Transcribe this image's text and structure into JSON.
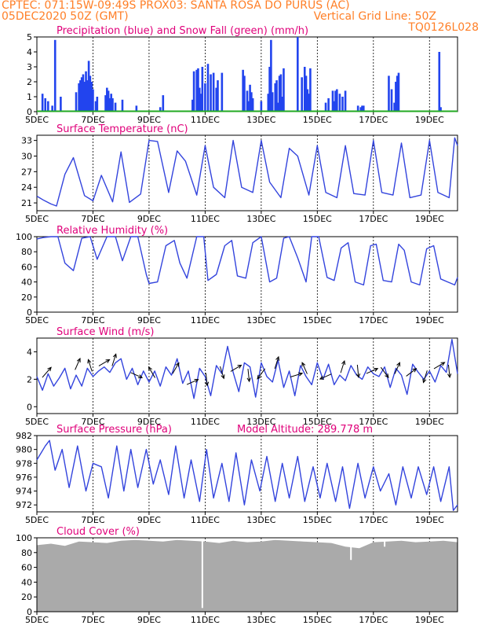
{
  "header": {
    "line1": "CPTEC:   071:15W-09:49S   PROX03: SANTA ROSA DO PURUS (AC)",
    "line2": "05DEC2020 50Z (GMT)",
    "grid_note": "Vertical Grid Line: 50Z",
    "code": "TQ0126L028"
  },
  "colors": {
    "header": "#ff7f27",
    "title": "#e0007a",
    "line": "#3344dd",
    "precip_bar": "#2244ee",
    "snow": "#22aa22",
    "cloud": "#aaaaaa",
    "arrow": "#000000"
  },
  "x_axis": {
    "start_day": 5,
    "end_day": 20,
    "ticks": [
      {
        "day": 5,
        "label": "5DEC"
      },
      {
        "day": 7,
        "label": "7DEC"
      },
      {
        "day": 9,
        "label": "9DEC"
      },
      {
        "day": 11,
        "label": "11DEC"
      },
      {
        "day": 13,
        "label": "13DEC"
      },
      {
        "day": 15,
        "label": "15DEC"
      },
      {
        "day": 17,
        "label": "17DEC"
      },
      {
        "day": 19,
        "label": "19DEC"
      }
    ]
  },
  "chart_data": [
    {
      "type": "bar",
      "title": "Precipitation (blue) and Snow Fall (green) (mm/h)",
      "ylim": [
        0,
        5
      ],
      "yticks": [
        "0",
        "1",
        "2",
        "3",
        "4",
        "5"
      ],
      "ytick_values": [
        0,
        1,
        2,
        3,
        4,
        5
      ],
      "series": [
        {
          "name": "Precipitation",
          "x": [
            5.2,
            5.3,
            5.4,
            5.55,
            5.65,
            5.85,
            6.4,
            6.5,
            6.55,
            6.6,
            6.65,
            6.7,
            6.75,
            6.8,
            6.85,
            6.9,
            6.95,
            7.0,
            7.1,
            7.15,
            7.45,
            7.5,
            7.55,
            7.6,
            7.65,
            7.7,
            7.8,
            8.05,
            8.55,
            9.4,
            9.5,
            10.55,
            10.6,
            10.7,
            10.75,
            10.8,
            10.85,
            10.9,
            11.0,
            11.1,
            11.2,
            11.3,
            11.4,
            11.45,
            11.6,
            12.35,
            12.4,
            12.5,
            12.55,
            12.6,
            12.65,
            12.7,
            13.0,
            13.25,
            13.3,
            13.35,
            13.4,
            13.5,
            13.55,
            13.6,
            13.65,
            13.7,
            13.75,
            13.8,
            14.3,
            14.45,
            14.55,
            14.6,
            14.65,
            14.7,
            14.75,
            15.3,
            15.4,
            15.55,
            15.6,
            15.65,
            15.7,
            15.8,
            15.9,
            16.0,
            16.45,
            16.55,
            16.6,
            16.65,
            17.55,
            17.65,
            17.75,
            17.8,
            17.85,
            17.9,
            19.35,
            19.4
          ],
          "values": [
            1.2,
            0.9,
            0.7,
            0.4,
            4.8,
            1.0,
            1.3,
            1.9,
            2.1,
            2.3,
            2.5,
            2.0,
            2.7,
            2.1,
            3.4,
            2.4,
            2.0,
            1.5,
            0.7,
            1.0,
            1.1,
            1.6,
            1.4,
            0.9,
            1.2,
            0.9,
            0.6,
            0.8,
            0.4,
            0.3,
            1.1,
            0.8,
            2.7,
            2.8,
            2.9,
            1.6,
            1.2,
            3.0,
            1.9,
            3.2,
            2.5,
            2.6,
            1.6,
            2.1,
            2.6,
            2.8,
            2.4,
            1.4,
            0.7,
            1.8,
            1.3,
            0.9,
            0.7,
            1.2,
            3.0,
            4.8,
            1.3,
            1.9,
            2.1,
            0.6,
            2.4,
            2.5,
            1.0,
            2.9,
            5.0,
            2.3,
            3.0,
            2.4,
            1.5,
            1.2,
            2.9,
            0.6,
            0.9,
            1.4,
            0.7,
            1.4,
            1.5,
            1.2,
            1.0,
            1.4,
            0.4,
            0.3,
            0.4,
            0.4,
            2.4,
            1.5,
            0.6,
            2.0,
            2.4,
            2.6,
            4.0,
            0.3
          ]
        },
        {
          "name": "Snow Fall",
          "x": [
            5.0,
            20.0
          ],
          "values": [
            0,
            0
          ]
        }
      ]
    },
    {
      "type": "line",
      "title": "Surface Temperature (nC)",
      "ylim": [
        19.5,
        34
      ],
      "yticks": [
        "21",
        "24",
        "27",
        "30",
        "33"
      ],
      "ytick_values": [
        21,
        24,
        27,
        30,
        33
      ],
      "x": [
        5.0,
        5.25,
        5.5,
        5.7,
        6.0,
        6.3,
        6.7,
        7.0,
        7.3,
        7.7,
        8.0,
        8.3,
        8.7,
        9.0,
        9.3,
        9.7,
        10.0,
        10.3,
        10.7,
        11.0,
        11.3,
        11.7,
        12.0,
        12.3,
        12.7,
        13.0,
        13.3,
        13.7,
        14.0,
        14.3,
        14.7,
        15.0,
        15.3,
        15.7,
        16.0,
        16.3,
        16.7,
        17.0,
        17.3,
        17.7,
        18.0,
        18.3,
        18.7,
        19.0,
        19.3,
        19.7,
        19.9,
        20.0
      ],
      "values": [
        22.3,
        21.5,
        20.8,
        20.4,
        26.5,
        29.7,
        22.4,
        21.4,
        26.3,
        21.2,
        30.8,
        21.1,
        22.7,
        33.0,
        32.8,
        23.0,
        31.0,
        29.0,
        22.5,
        32.0,
        24.0,
        22.0,
        33.0,
        24.0,
        23.0,
        33.0,
        25.0,
        22.0,
        31.5,
        30.0,
        22.5,
        32.0,
        23.0,
        22.0,
        32.0,
        22.8,
        22.5,
        33.0,
        23.0,
        22.5,
        32.5,
        22.0,
        22.5,
        33.0,
        23.0,
        22.0,
        33.5,
        32.0
      ]
    },
    {
      "type": "line",
      "title": "Relative Humidity (%)",
      "ylim": [
        0,
        100
      ],
      "yticks": [
        "0",
        "20",
        "40",
        "60",
        "80",
        "100"
      ],
      "ytick_values": [
        0,
        20,
        40,
        60,
        80,
        100
      ],
      "x": [
        5.0,
        5.25,
        5.5,
        5.75,
        6.0,
        6.3,
        6.6,
        6.9,
        7.15,
        7.5,
        7.8,
        8.05,
        8.35,
        8.6,
        8.9,
        9.0,
        9.3,
        9.6,
        9.9,
        10.1,
        10.35,
        10.7,
        10.95,
        11.1,
        11.4,
        11.7,
        11.95,
        12.15,
        12.45,
        12.7,
        13.0,
        13.3,
        13.55,
        13.8,
        14.0,
        14.3,
        14.6,
        14.8,
        15.05,
        15.35,
        15.6,
        15.85,
        16.1,
        16.35,
        16.65,
        16.9,
        17.1,
        17.35,
        17.65,
        17.9,
        18.1,
        18.35,
        18.65,
        18.9,
        19.15,
        19.4,
        19.65,
        19.9,
        20.0
      ],
      "values": [
        97,
        99,
        100,
        100,
        65,
        55,
        98,
        100,
        70,
        100,
        100,
        68,
        100,
        100,
        50,
        38,
        40,
        88,
        95,
        65,
        45,
        100,
        100,
        42,
        50,
        88,
        95,
        48,
        45,
        92,
        100,
        40,
        45,
        98,
        100,
        72,
        40,
        100,
        100,
        46,
        42,
        85,
        92,
        40,
        36,
        88,
        90,
        42,
        40,
        90,
        82,
        40,
        36,
        84,
        88,
        44,
        40,
        36,
        46
      ]
    },
    {
      "type": "line",
      "title": "Surface Wind (m/s)",
      "ylim": [
        -0.5,
        5
      ],
      "yticks": [
        "0",
        "2",
        "4"
      ],
      "ytick_values": [
        0,
        2,
        4
      ],
      "x": [
        5.0,
        5.2,
        5.4,
        5.6,
        5.8,
        6.0,
        6.2,
        6.4,
        6.6,
        6.8,
        7.0,
        7.2,
        7.4,
        7.6,
        7.8,
        8.0,
        8.2,
        8.4,
        8.6,
        8.8,
        9.0,
        9.2,
        9.4,
        9.6,
        9.8,
        10.0,
        10.2,
        10.4,
        10.6,
        10.8,
        11.0,
        11.2,
        11.4,
        11.6,
        11.8,
        12.0,
        12.2,
        12.4,
        12.6,
        12.8,
        13.0,
        13.2,
        13.4,
        13.6,
        13.8,
        14.0,
        14.2,
        14.4,
        14.6,
        14.8,
        15.0,
        15.2,
        15.4,
        15.6,
        15.8,
        16.0,
        16.2,
        16.4,
        16.6,
        16.8,
        17.0,
        17.2,
        17.4,
        17.6,
        17.8,
        18.0,
        18.2,
        18.4,
        18.6,
        18.8,
        19.0,
        19.2,
        19.4,
        19.6,
        19.8,
        20.0
      ],
      "values": [
        2.2,
        1.2,
        2.4,
        1.5,
        2.1,
        2.8,
        1.3,
        2.3,
        1.5,
        2.8,
        2.2,
        2.6,
        2.9,
        2.5,
        3.2,
        3.5,
        2.0,
        2.8,
        1.6,
        2.6,
        1.8,
        2.6,
        1.5,
        2.9,
        2.3,
        3.5,
        1.7,
        2.6,
        0.6,
        2.8,
        2.2,
        0.8,
        3.0,
        2.4,
        4.4,
        2.5,
        1.1,
        3.2,
        2.9,
        0.7,
        3.2,
        2.2,
        1.8,
        3.4,
        1.4,
        2.6,
        0.8,
        3.0,
        2.2,
        1.6,
        3.2,
        2.0,
        3.1,
        1.6,
        2.3,
        1.9,
        3.0,
        2.3,
        2.0,
        2.9,
        2.4,
        2.2,
        2.9,
        1.4,
        2.8,
        2.3,
        0.9,
        3.1,
        2.5,
        2.0,
        2.6,
        1.8,
        3.0,
        2.5,
        4.9,
        2.4
      ]
    },
    {
      "type": "line",
      "title": "Surface Pressure (hPa)",
      "annotation": "Model Altitude: 289.778  m",
      "ylim": [
        971,
        982
      ],
      "yticks": [
        "972",
        "974",
        "976",
        "978",
        "980",
        "982"
      ],
      "ytick_values": [
        972,
        974,
        976,
        978,
        980,
        982
      ],
      "x": [
        5.0,
        5.15,
        5.3,
        5.45,
        5.65,
        5.9,
        6.15,
        6.45,
        6.75,
        7.0,
        7.3,
        7.55,
        7.85,
        8.1,
        8.35,
        8.6,
        8.9,
        9.15,
        9.4,
        9.7,
        9.95,
        10.25,
        10.5,
        10.8,
        11.05,
        11.3,
        11.6,
        11.85,
        12.1,
        12.4,
        12.65,
        12.95,
        13.2,
        13.5,
        13.75,
        14.0,
        14.3,
        14.55,
        14.85,
        15.1,
        15.35,
        15.65,
        15.9,
        16.15,
        16.45,
        16.7,
        17.0,
        17.25,
        17.55,
        17.8,
        18.05,
        18.35,
        18.6,
        18.9,
        19.15,
        19.4,
        19.7,
        19.85,
        20.0
      ],
      "values": [
        978.5,
        979.5,
        980.5,
        981.3,
        977.0,
        980.0,
        974.5,
        980.5,
        974.0,
        978.0,
        977.5,
        973.0,
        980.5,
        974.0,
        980.0,
        974.5,
        980.0,
        975.0,
        978.5,
        973.5,
        980.5,
        973.0,
        978.5,
        972.5,
        980.0,
        973.0,
        978.0,
        972.5,
        979.5,
        972.0,
        978.5,
        974.0,
        979.0,
        972.5,
        978.0,
        973.0,
        979.0,
        972.5,
        977.5,
        973.0,
        978.0,
        972.5,
        977.5,
        971.5,
        978.0,
        973.0,
        977.5,
        974.0,
        976.5,
        972.0,
        977.5,
        973.0,
        977.5,
        973.5,
        977.5,
        972.5,
        977.5,
        971.2,
        972.0
      ]
    },
    {
      "type": "area",
      "title": "Cloud Cover (%)",
      "ylim": [
        0,
        100
      ],
      "yticks": [
        "0",
        "20",
        "40",
        "60",
        "80",
        "100"
      ],
      "ytick_values": [
        0,
        20,
        40,
        60,
        80,
        100
      ],
      "x": [
        5.0,
        5.5,
        6.0,
        6.5,
        7.0,
        7.5,
        8.0,
        8.5,
        9.0,
        9.5,
        10.0,
        10.5,
        11.0,
        11.5,
        12.0,
        12.5,
        13.0,
        13.5,
        14.0,
        14.5,
        15.0,
        15.5,
        16.0,
        16.5,
        17.0,
        17.5,
        18.0,
        18.5,
        19.0,
        19.5,
        20.0
      ],
      "values": [
        90,
        92,
        89,
        95,
        94,
        93,
        96,
        97,
        96,
        95,
        97,
        96,
        95,
        93,
        96,
        94,
        95,
        97,
        96,
        95,
        94,
        93,
        88,
        86,
        94,
        95,
        96,
        94,
        95,
        96,
        94
      ],
      "dips": [
        {
          "x": 10.9,
          "value": 5
        },
        {
          "x": 16.2,
          "value": 70
        },
        {
          "x": 17.4,
          "value": 88
        }
      ]
    }
  ],
  "wind_arrows": [
    {
      "day": 5.35,
      "speed": 2.5,
      "dx": 0.7,
      "dy": 0.8
    },
    {
      "day": 6.45,
      "speed": 3.1,
      "dx": 0.4,
      "dy": 0.9
    },
    {
      "day": 6.9,
      "speed": 3.0,
      "dx": -0.3,
      "dy": 0.95
    },
    {
      "day": 7.4,
      "speed": 3.2,
      "dx": 0.85,
      "dy": 0.5
    },
    {
      "day": 7.75,
      "speed": 3.4,
      "dx": 0.3,
      "dy": 0.95
    },
    {
      "day": 8.55,
      "speed": 2.3,
      "dx": 0.9,
      "dy": -0.4
    },
    {
      "day": 9.1,
      "speed": 2.5,
      "dx": -0.5,
      "dy": 0.85
    },
    {
      "day": 9.95,
      "speed": 2.8,
      "dx": 0.5,
      "dy": 0.85
    },
    {
      "day": 10.55,
      "speed": 1.8,
      "dx": 0.9,
      "dy": 0.4
    },
    {
      "day": 11.05,
      "speed": 2.0,
      "dx": 0.1,
      "dy": -1.0
    },
    {
      "day": 11.6,
      "speed": 2.5,
      "dx": 0.3,
      "dy": -0.95
    },
    {
      "day": 12.1,
      "speed": 2.8,
      "dx": 0.85,
      "dy": 0.5
    },
    {
      "day": 12.55,
      "speed": 2.3,
      "dx": 0.1,
      "dy": -1.0
    },
    {
      "day": 13.0,
      "speed": 2.4,
      "dx": -0.6,
      "dy": -0.8
    },
    {
      "day": 13.55,
      "speed": 3.2,
      "dx": 0.3,
      "dy": 0.95
    },
    {
      "day": 14.25,
      "speed": 2.3,
      "dx": 0.95,
      "dy": 0.3
    },
    {
      "day": 14.55,
      "speed": 2.8,
      "dx": -0.4,
      "dy": 0.9
    },
    {
      "day": 15.3,
      "speed": 2.2,
      "dx": -0.9,
      "dy": -0.4
    },
    {
      "day": 15.9,
      "speed": 2.9,
      "dx": 0.3,
      "dy": 0.95
    },
    {
      "day": 16.45,
      "speed": 2.6,
      "dx": 0.1,
      "dy": -1.0
    },
    {
      "day": 16.95,
      "speed": 2.6,
      "dx": 0.9,
      "dy": 0.4
    },
    {
      "day": 17.4,
      "speed": 2.5,
      "dx": 0.6,
      "dy": -0.8
    },
    {
      "day": 17.85,
      "speed": 2.8,
      "dx": 0.4,
      "dy": 0.9
    },
    {
      "day": 18.35,
      "speed": 2.5,
      "dx": 0.8,
      "dy": 0.6
    },
    {
      "day": 18.85,
      "speed": 2.2,
      "dx": -0.3,
      "dy": -0.95
    },
    {
      "day": 19.35,
      "speed": 3.0,
      "dx": 0.85,
      "dy": 0.5
    },
    {
      "day": 19.7,
      "speed": 2.6,
      "dx": 0.1,
      "dy": -1.0
    }
  ]
}
